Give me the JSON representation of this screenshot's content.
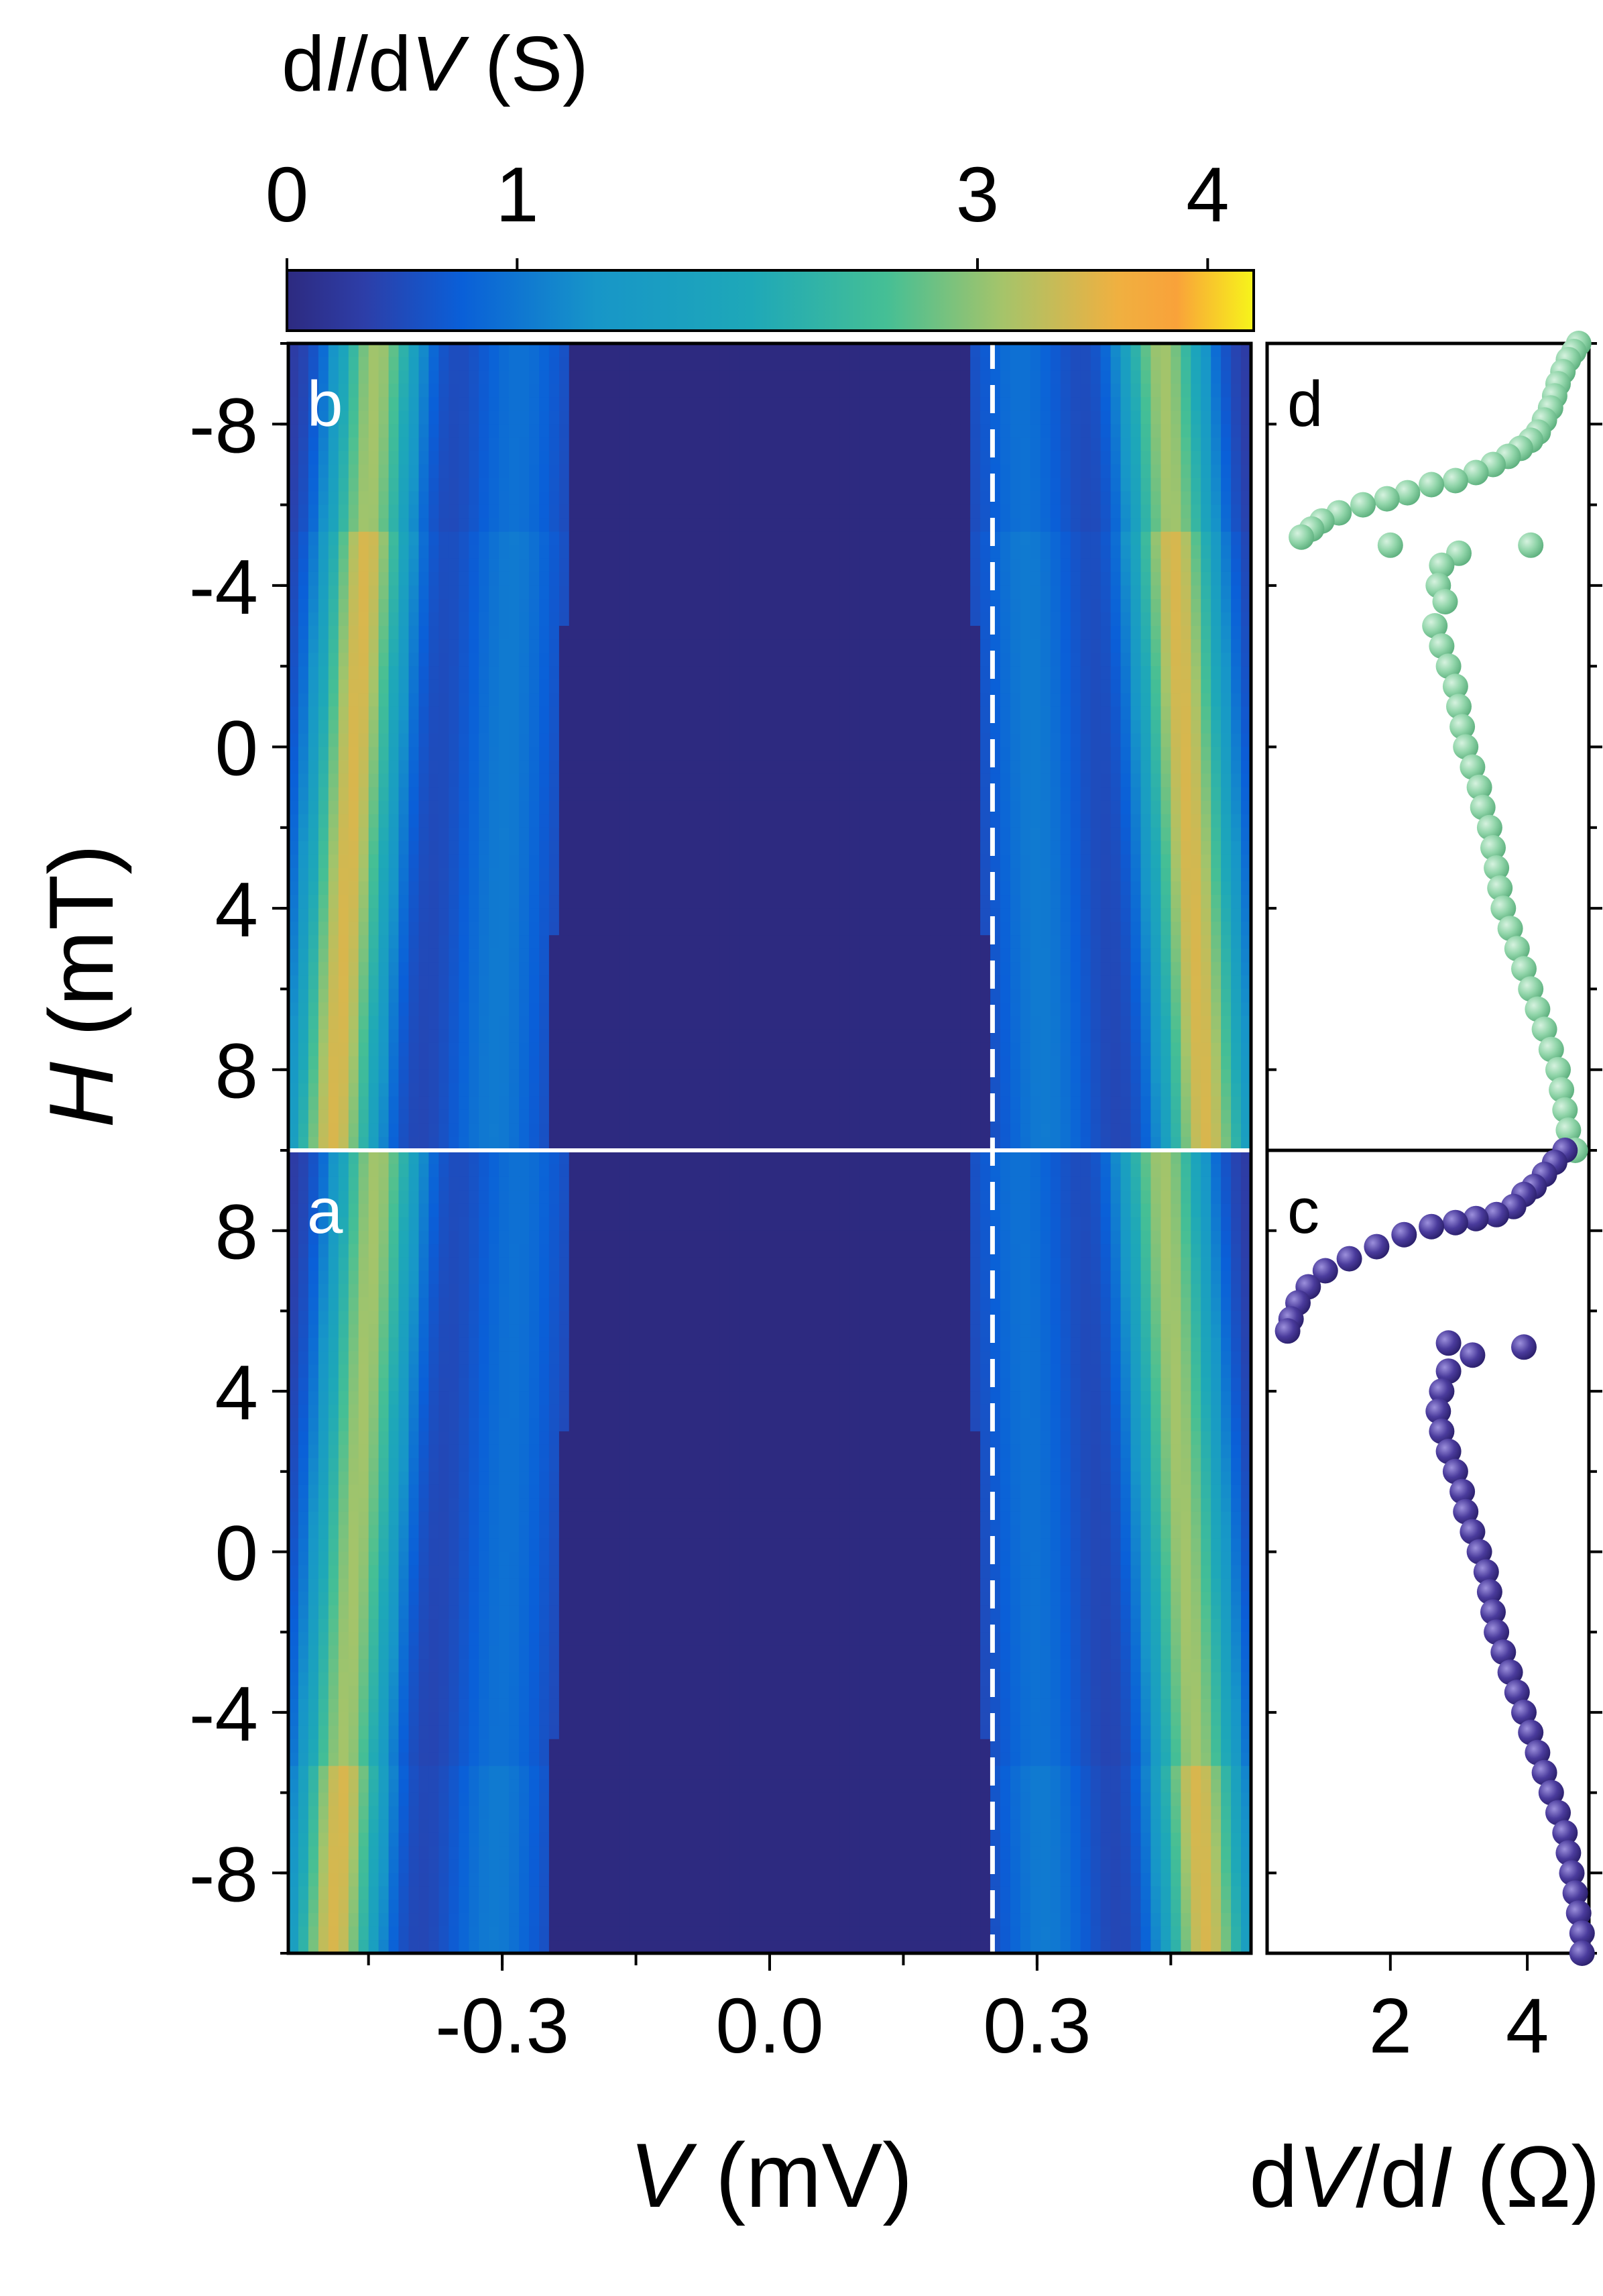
{
  "colorbar": {
    "title_prefix": "d",
    "title_i": "I",
    "title_slash": "/d",
    "title_v": "V",
    "title_unit": " (S)",
    "ticks": [
      "0",
      "1",
      "3",
      "4"
    ],
    "tick_values": [
      0,
      1,
      3,
      4
    ],
    "range": [
      0,
      4.2
    ]
  },
  "main_axes": {
    "xlabel_var": "V",
    "xlabel_unit": " (mV)",
    "ylabel_var": "H",
    "ylabel_unit": " (mT)",
    "x_ticks": [
      "-0.3",
      "0.0",
      "0.3"
    ],
    "x_tick_values": [
      -0.3,
      0.0,
      0.3
    ],
    "x_range": [
      -0.54,
      0.54
    ],
    "y_ticks_b": [
      "-8",
      "-4",
      "0",
      "4",
      "8"
    ],
    "y_ticks_a": [
      "8",
      "4",
      "0",
      "-4",
      "-8"
    ],
    "y_tick_values": [
      -8,
      -4,
      0,
      4,
      8
    ],
    "y_range": [
      -10,
      10
    ]
  },
  "side_axes": {
    "xlabel_d": "d",
    "xlabel_v": "V",
    "xlabel_slash": "/d",
    "xlabel_i": "I",
    "xlabel_unit": " (Ω)",
    "x_ticks": [
      "2",
      "4"
    ],
    "x_tick_values": [
      2,
      4
    ],
    "x_range": [
      0.2,
      4.9
    ]
  },
  "panels": {
    "a": "a",
    "b": "b",
    "c": "c",
    "d": "d"
  },
  "marker": {
    "dashed_line_V": 0.25
  },
  "colors": {
    "panel_c_points": "#4a3b9c",
    "panel_d_points": "#8fd4a8",
    "colormap": [
      "#2d2a80",
      "#0a5fd8",
      "#1796c8",
      "#2cb3a6",
      "#82c37d",
      "#e8b34a",
      "#f9a13a",
      "#f7f51a"
    ]
  },
  "chart_data": [
    {
      "type": "heatmap",
      "panel": "b",
      "description_axis": "dI/dV map vs V and H",
      "x_range": [
        -0.54,
        0.54
      ],
      "y_range": [
        -10,
        10
      ],
      "y_direction": "top -10 to bottom 10",
      "gap_edge_low_H": 0.25,
      "gap_edge_high_H": 0.22,
      "peak_V_low_H": 0.49,
      "peak_V_high_H": 0.44,
      "switch_H": -5.2,
      "peak_value": 3.6
    },
    {
      "type": "heatmap",
      "panel": "a",
      "description_axis": "dI/dV map vs V and H",
      "x_range": [
        -0.54,
        0.54
      ],
      "y_range": [
        -10,
        10
      ],
      "y_direction": "top 10 to bottom -10",
      "gap_edge_low_H": 0.25,
      "gap_edge_high_H": 0.22,
      "peak_V_low_H": 0.49,
      "peak_V_high_H": 0.44,
      "switch_H": 5.2,
      "peak_value": 3.6
    },
    {
      "type": "scatter",
      "panel": "d",
      "x_label": "dV/dI",
      "series": [
        {
          "points": [
            [
              4.75,
              -10
            ],
            [
              4.68,
              -9.8
            ],
            [
              4.6,
              -9.6
            ],
            [
              4.52,
              -9.3
            ],
            [
              4.45,
              -9.0
            ],
            [
              4.4,
              -8.7
            ],
            [
              4.34,
              -8.4
            ],
            [
              4.25,
              -8.1
            ],
            [
              4.16,
              -7.8
            ],
            [
              4.05,
              -7.6
            ],
            [
              3.9,
              -7.4
            ],
            [
              3.72,
              -7.2
            ],
            [
              3.5,
              -7.0
            ],
            [
              3.25,
              -6.8
            ],
            [
              2.95,
              -6.6
            ],
            [
              2.6,
              -6.5
            ],
            [
              2.25,
              -6.3
            ],
            [
              1.95,
              -6.15
            ],
            [
              1.6,
              -6.0
            ],
            [
              1.25,
              -5.8
            ],
            [
              1.0,
              -5.6
            ],
            [
              0.85,
              -5.4
            ],
            [
              0.7,
              -5.2
            ],
            [
              2.0,
              -5.0
            ],
            [
              4.05,
              -5.0
            ],
            [
              3.0,
              -4.8
            ],
            [
              2.75,
              -4.5
            ],
            [
              2.7,
              -4.0
            ],
            [
              2.8,
              -3.6
            ],
            [
              2.65,
              -3.0
            ],
            [
              2.75,
              -2.5
            ],
            [
              2.85,
              -2.0
            ],
            [
              2.95,
              -1.5
            ],
            [
              3.0,
              -1.0
            ],
            [
              3.05,
              -0.5
            ],
            [
              3.1,
              0.0
            ],
            [
              3.2,
              0.5
            ],
            [
              3.3,
              1.0
            ],
            [
              3.35,
              1.5
            ],
            [
              3.45,
              2.0
            ],
            [
              3.5,
              2.5
            ],
            [
              3.55,
              3.0
            ],
            [
              3.6,
              3.5
            ],
            [
              3.65,
              4.0
            ],
            [
              3.75,
              4.5
            ],
            [
              3.85,
              5.0
            ],
            [
              3.95,
              5.5
            ],
            [
              4.05,
              6.0
            ],
            [
              4.15,
              6.5
            ],
            [
              4.25,
              7.0
            ],
            [
              4.35,
              7.5
            ],
            [
              4.45,
              8.0
            ],
            [
              4.5,
              8.5
            ],
            [
              4.55,
              9.0
            ],
            [
              4.6,
              9.5
            ],
            [
              4.7,
              10
            ]
          ]
        }
      ]
    },
    {
      "type": "scatter",
      "panel": "c",
      "x_label": "dV/dI",
      "series": [
        {
          "points": [
            [
              4.55,
              10
            ],
            [
              4.4,
              9.7
            ],
            [
              4.25,
              9.4
            ],
            [
              4.1,
              9.1
            ],
            [
              3.95,
              8.9
            ],
            [
              3.8,
              8.6
            ],
            [
              3.55,
              8.4
            ],
            [
              3.25,
              8.3
            ],
            [
              2.95,
              8.2
            ],
            [
              2.6,
              8.1
            ],
            [
              2.2,
              7.9
            ],
            [
              1.8,
              7.6
            ],
            [
              1.4,
              7.3
            ],
            [
              1.05,
              7.0
            ],
            [
              0.8,
              6.6
            ],
            [
              0.65,
              6.2
            ],
            [
              0.55,
              5.8
            ],
            [
              0.5,
              5.5
            ],
            [
              2.85,
              5.2
            ],
            [
              3.95,
              5.1
            ],
            [
              3.2,
              4.9
            ],
            [
              2.85,
              4.5
            ],
            [
              2.75,
              4.0
            ],
            [
              2.7,
              3.5
            ],
            [
              2.75,
              3.0
            ],
            [
              2.85,
              2.5
            ],
            [
              2.95,
              2.0
            ],
            [
              3.05,
              1.5
            ],
            [
              3.1,
              1.0
            ],
            [
              3.2,
              0.5
            ],
            [
              3.3,
              0.0
            ],
            [
              3.4,
              -0.5
            ],
            [
              3.45,
              -1.0
            ],
            [
              3.5,
              -1.5
            ],
            [
              3.55,
              -2.0
            ],
            [
              3.65,
              -2.5
            ],
            [
              3.75,
              -3.0
            ],
            [
              3.85,
              -3.5
            ],
            [
              3.95,
              -4.0
            ],
            [
              4.05,
              -4.5
            ],
            [
              4.15,
              -5.0
            ],
            [
              4.25,
              -5.5
            ],
            [
              4.35,
              -6.0
            ],
            [
              4.45,
              -6.5
            ],
            [
              4.55,
              -7.0
            ],
            [
              4.6,
              -7.5
            ],
            [
              4.65,
              -8.0
            ],
            [
              4.7,
              -8.5
            ],
            [
              4.75,
              -9.0
            ],
            [
              4.8,
              -9.5
            ],
            [
              4.8,
              -10
            ]
          ]
        }
      ]
    }
  ]
}
